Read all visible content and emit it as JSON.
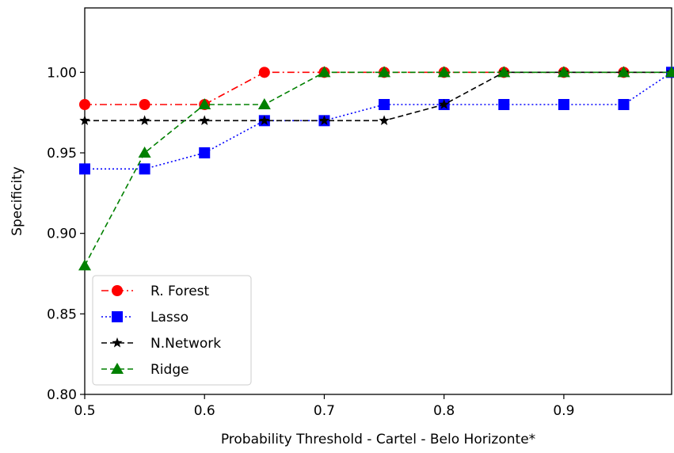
{
  "chart_data": {
    "type": "line",
    "title": "",
    "xlabel": "Probability Threshold - Cartel  - Belo Horizonte*",
    "ylabel": "Specificity",
    "xlim": [
      0.5,
      0.99
    ],
    "ylim": [
      0.8,
      1.04
    ],
    "xticks": [
      0.5,
      0.6,
      0.7,
      0.8,
      0.9
    ],
    "xtick_labels": [
      "0.5",
      "0.6",
      "0.7",
      "0.8",
      "0.9"
    ],
    "yticks": [
      0.8,
      0.85,
      0.9,
      0.95,
      1.0
    ],
    "ytick_labels": [
      "0.80",
      "0.85",
      "0.90",
      "0.95",
      "1.00"
    ],
    "grid": false,
    "legend_position": "lower-left",
    "x": [
      0.5,
      0.55,
      0.6,
      0.65,
      0.7,
      0.75,
      0.8,
      0.85,
      0.9,
      0.95,
      0.99
    ],
    "series": [
      {
        "name": "R. Forest",
        "color": "#ff0000",
        "dash": "dashdot",
        "marker": "circle",
        "values": [
          0.98,
          0.98,
          0.98,
          1.0,
          1.0,
          1.0,
          1.0,
          1.0,
          1.0,
          1.0,
          1.0
        ]
      },
      {
        "name": "Lasso",
        "color": "#0000ff",
        "dash": "dotted",
        "marker": "square",
        "values": [
          0.94,
          0.94,
          0.95,
          0.97,
          0.97,
          0.98,
          0.98,
          0.98,
          0.98,
          0.98,
          1.0
        ]
      },
      {
        "name": "N.Network",
        "color": "#000000",
        "dash": "dashed",
        "marker": "star",
        "values": [
          0.97,
          0.97,
          0.97,
          0.97,
          0.97,
          0.97,
          0.98,
          1.0,
          1.0,
          1.0,
          1.0
        ]
      },
      {
        "name": "Ridge",
        "color": "#008000",
        "dash": "dashed",
        "marker": "triangle",
        "values": [
          0.88,
          0.95,
          0.98,
          0.98,
          1.0,
          1.0,
          1.0,
          1.0,
          1.0,
          1.0,
          1.0
        ]
      }
    ]
  }
}
